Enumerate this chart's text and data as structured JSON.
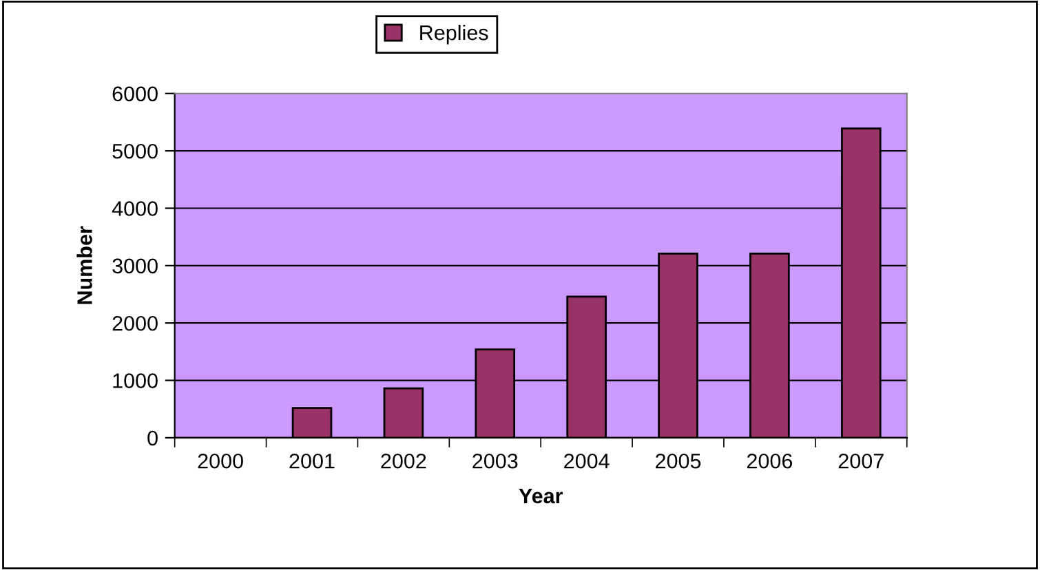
{
  "chart_data": {
    "type": "bar",
    "xlabel": "Year",
    "ylabel": "Number",
    "categories": [
      "2000",
      "2001",
      "2002",
      "2003",
      "2004",
      "2005",
      "2006",
      "2007"
    ],
    "series": [
      {
        "name": "Replies",
        "color": "#993366",
        "values": [
          0,
          520,
          860,
          1540,
          2460,
          3210,
          3210,
          5390
        ]
      }
    ],
    "ylim": [
      0,
      6000
    ],
    "yticks": [
      0,
      1000,
      2000,
      3000,
      4000,
      5000,
      6000
    ],
    "grid": "y",
    "legend": "top"
  }
}
